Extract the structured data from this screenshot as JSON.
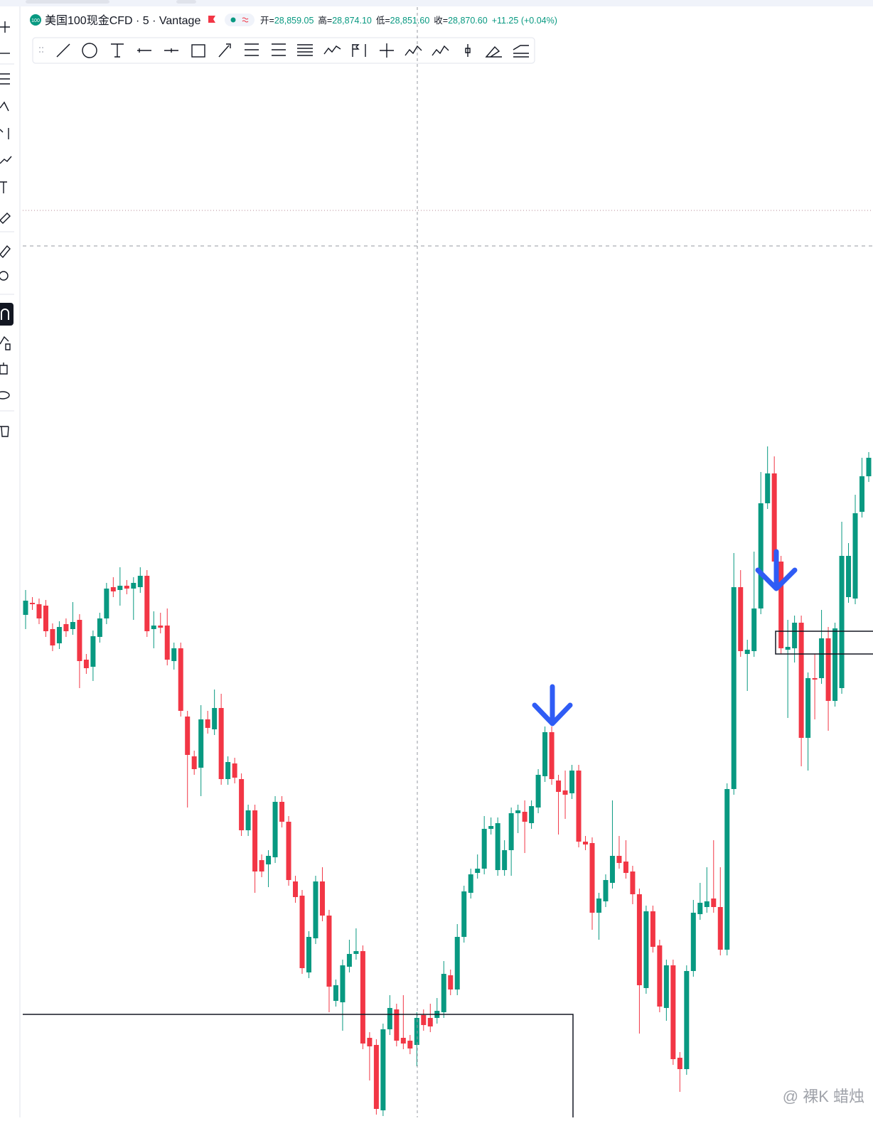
{
  "header": {
    "symbol": "美国100现金CFD · 5 · Vantage",
    "ohlc": [
      {
        "label": "开=",
        "value": "28,859.05"
      },
      {
        "label": "高=",
        "value": "28,874.10"
      },
      {
        "label": "低=",
        "value": "28,851.60"
      },
      {
        "label": "收=",
        "value": "28,870.60"
      }
    ],
    "change": "+11.25 (+0.04%)"
  },
  "watermark": "@ 裸K 蜡烛",
  "chart_data": {
    "type": "candlestick",
    "up_color": "#089981",
    "down_color": "#f23645",
    "ylim": [
      0,
      1500
    ],
    "open": [
      707,
      724,
      722,
      720,
      687,
      667,
      694,
      687,
      700,
      644,
      634,
      676,
      702,
      746,
      742,
      748,
      744,
      746,
      762,
      687,
      692,
      692,
      642,
      660,
      564,
      508,
      492,
      560,
      546,
      576,
      476,
      498,
      476,
      404,
      432,
      362,
      356,
      366,
      444,
      416,
      332,
      312,
      204,
      252,
      332,
      284,
      164,
      162,
      212,
      230,
      234,
      112,
      102,
      10,
      124,
      152,
      112,
      108,
      102,
      144,
      140,
      140,
      148,
      200,
      180,
      254,
      316,
      344,
      350,
      406,
      348,
      348,
      376,
      428,
      430,
      414,
      436,
      480,
      542,
      474,
      460,
      456,
      488,
      388,
      386,
      288,
      304,
      330,
      368,
      360,
      346,
      314,
      182,
      290,
      242,
      154,
      214,
      84,
      68,
      206,
      286,
      296,
      308,
      296,
      236,
      462,
      746,
      652,
      656,
      716,
      864,
      906,
      782,
      658,
      660,
      696,
      534,
      618,
      618,
      674,
      586,
      604,
      732,
      730,
      852,
      902
    ],
    "high": [
      742,
      732,
      730,
      728,
      695,
      698,
      702,
      725,
      708,
      652,
      685,
      710,
      752,
      760,
      774,
      756,
      760,
      774,
      770,
      712,
      710,
      716,
      668,
      668,
      572,
      516,
      580,
      572,
      602,
      596,
      508,
      506,
      484,
      440,
      440,
      370,
      376,
      452,
      452,
      424,
      340,
      320,
      262,
      340,
      352,
      292,
      194,
      222,
      250,
      266,
      242,
      120,
      110,
      132,
      172,
      160,
      172,
      116,
      148,
      152,
      160,
      168,
      220,
      208,
      272,
      326,
      350,
      370,
      424,
      422,
      422,
      390,
      436,
      440,
      446,
      446,
      490,
      550,
      550,
      482,
      488,
      496,
      496,
      396,
      394,
      316,
      342,
      446,
      396,
      390,
      354,
      322,
      298,
      298,
      250,
      222,
      222,
      92,
      214,
      306,
      330,
      352,
      390,
      352,
      470,
      794,
      770,
      672,
      796,
      908,
      944,
      930,
      790,
      700,
      706,
      706,
      626,
      652,
      714,
      690,
      696,
      838,
      808,
      876,
      928,
      936
    ],
    "low": [
      687,
      714,
      694,
      676,
      656,
      659,
      676,
      679,
      604,
      624,
      614,
      668,
      694,
      732,
      720,
      736,
      700,
      738,
      676,
      660,
      681,
      636,
      630,
      564,
      436,
      482,
      452,
      540,
      538,
      468,
      468,
      470,
      396,
      396,
      316,
      338,
      324,
      358,
      408,
      326,
      302,
      202,
      196,
      244,
      276,
      148,
      156,
      122,
      204,
      222,
      96,
      52,
      4,
      2,
      116,
      100,
      96,
      89,
      72,
      122,
      120,
      132,
      140,
      172,
      172,
      246,
      308,
      336,
      342,
      398,
      340,
      340,
      340,
      400,
      372,
      406,
      428,
      472,
      468,
      398,
      420,
      448,
      380,
      376,
      264,
      250,
      296,
      322,
      350,
      336,
      300,
      118,
      174,
      232,
      148,
      136,
      74,
      36,
      60,
      198,
      278,
      288,
      288,
      228,
      228,
      454,
      648,
      600,
      648,
      708,
      856,
      774,
      652,
      562,
      640,
      494,
      488,
      560,
      610,
      544,
      578,
      596,
      724,
      722,
      844,
      894
    ],
    "close": [
      727,
      722,
      702,
      684,
      664,
      690,
      684,
      697,
      642,
      632,
      677,
      702,
      744,
      740,
      748,
      744,
      752,
      762,
      684,
      692,
      689,
      644,
      660,
      572,
      510,
      490,
      560,
      548,
      576,
      476,
      500,
      478,
      404,
      432,
      346,
      346,
      368,
      444,
      416,
      334,
      310,
      210,
      254,
      332,
      284,
      184,
      186,
      214,
      230,
      234,
      104,
      100,
      12,
      124,
      154,
      108,
      104,
      97,
      140,
      130,
      128,
      150,
      202,
      180,
      254,
      318,
      342,
      350,
      406,
      410,
      414,
      376,
      428,
      432,
      416,
      438,
      482,
      542,
      476,
      458,
      454,
      488,
      388,
      384,
      288,
      308,
      334,
      368,
      358,
      344,
      314,
      186,
      290,
      240,
      156,
      214,
      82,
      68,
      206,
      288,
      302,
      304,
      296,
      236,
      462,
      746,
      656,
      658,
      716,
      864,
      906,
      782,
      660,
      662,
      696,
      534,
      618,
      616,
      674,
      586,
      688,
      790,
      790,
      850,
      902,
      928
    ]
  }
}
